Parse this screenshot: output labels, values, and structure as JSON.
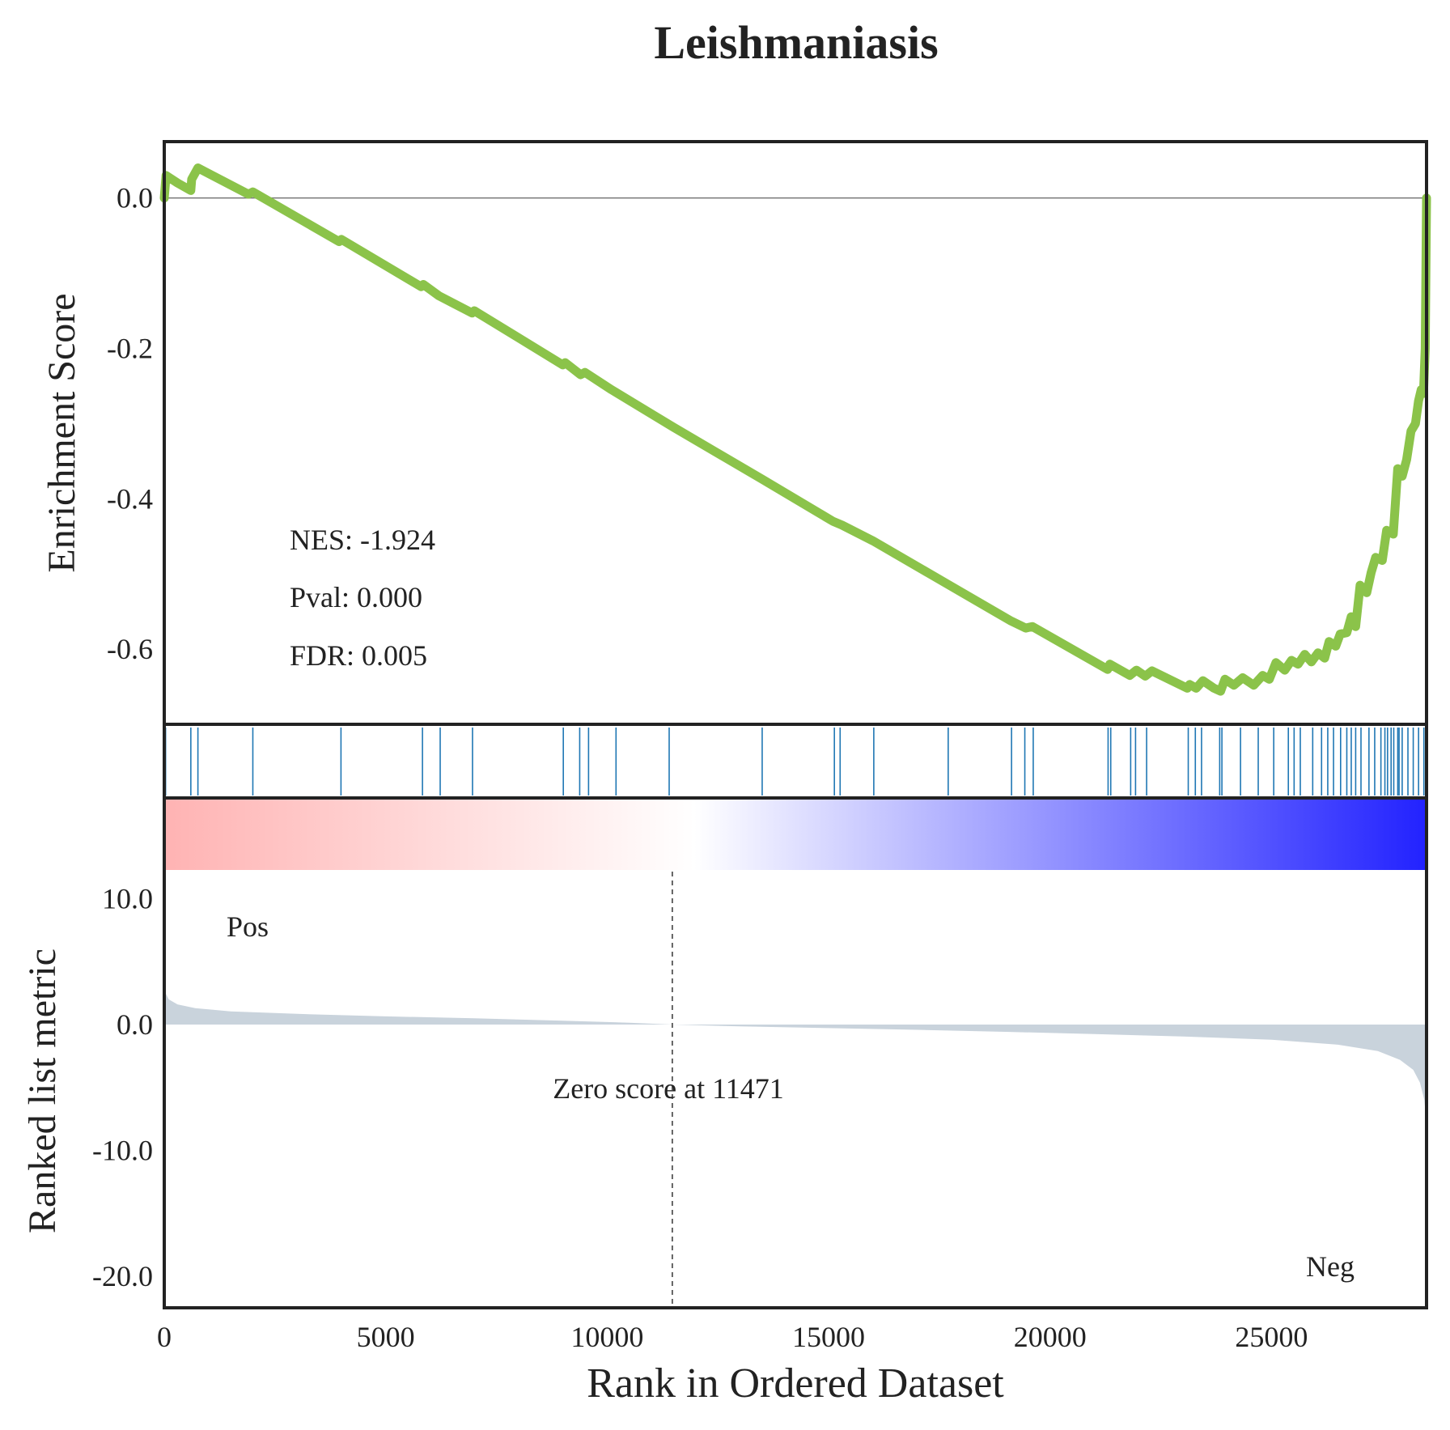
{
  "colors": {
    "es_line": "#8bc34a",
    "hit_line": "#1f77b4",
    "metric_fill": "#c9d3dc",
    "pos_color": "#ff0000",
    "neg_color": "#0000ff",
    "frame": "#222222"
  },
  "chart_data": {
    "type": "line",
    "title": "Leishmaniasis",
    "xlabel": "Rank in Ordered Dataset",
    "xlim": [
      0,
      28500
    ],
    "x_ticks": [
      {
        "value": 0,
        "label": "0"
      },
      {
        "value": 5000,
        "label": "5000"
      },
      {
        "value": 10000,
        "label": "10000"
      },
      {
        "value": 15000,
        "label": "15000"
      },
      {
        "value": 20000,
        "label": "20000"
      },
      {
        "value": 25000,
        "label": "25000"
      }
    ],
    "enrichment": {
      "ylabel": "Enrichment Score",
      "ylim": [
        -0.7,
        0.075
      ],
      "y_ticks": [
        {
          "value": 0.0,
          "label": "0.0"
        },
        {
          "value": -0.2,
          "label": "-0.2"
        },
        {
          "value": -0.4,
          "label": "-0.4"
        },
        {
          "value": -0.6,
          "label": "-0.6"
        }
      ],
      "stats": [
        "NES: -1.924",
        "Pval: 0.000",
        "FDR: 0.005"
      ],
      "points": [
        [
          0,
          0.0
        ],
        [
          40,
          0.03
        ],
        [
          300,
          0.02
        ],
        [
          600,
          0.01
        ],
        [
          620,
          0.025
        ],
        [
          760,
          0.04
        ],
        [
          1900,
          0.005
        ],
        [
          2000,
          0.008
        ],
        [
          3950,
          -0.058
        ],
        [
          4000,
          -0.055
        ],
        [
          5800,
          -0.118
        ],
        [
          5850,
          -0.115
        ],
        [
          6200,
          -0.13
        ],
        [
          6950,
          -0.153
        ],
        [
          7000,
          -0.15
        ],
        [
          9000,
          -0.222
        ],
        [
          9050,
          -0.219
        ],
        [
          9400,
          -0.235
        ],
        [
          9500,
          -0.232
        ],
        [
          10100,
          -0.255
        ],
        [
          11500,
          -0.305
        ],
        [
          13500,
          -0.374
        ],
        [
          15100,
          -0.43
        ],
        [
          15300,
          -0.435
        ],
        [
          16000,
          -0.456
        ],
        [
          17700,
          -0.514
        ],
        [
          19100,
          -0.562
        ],
        [
          19450,
          -0.572
        ],
        [
          19600,
          -0.57
        ],
        [
          21300,
          -0.627
        ],
        [
          21350,
          -0.62
        ],
        [
          21800,
          -0.635
        ],
        [
          21950,
          -0.628
        ],
        [
          22150,
          -0.636
        ],
        [
          22300,
          -0.629
        ],
        [
          23100,
          -0.652
        ],
        [
          23150,
          -0.647
        ],
        [
          23300,
          -0.652
        ],
        [
          23450,
          -0.642
        ],
        [
          23700,
          -0.652
        ],
        [
          23850,
          -0.656
        ],
        [
          23950,
          -0.64
        ],
        [
          24150,
          -0.648
        ],
        [
          24350,
          -0.638
        ],
        [
          24600,
          -0.648
        ],
        [
          24800,
          -0.635
        ],
        [
          24950,
          -0.64
        ],
        [
          25100,
          -0.618
        ],
        [
          25300,
          -0.628
        ],
        [
          25450,
          -0.615
        ],
        [
          25600,
          -0.62
        ],
        [
          25750,
          -0.607
        ],
        [
          25900,
          -0.617
        ],
        [
          26050,
          -0.605
        ],
        [
          26200,
          -0.612
        ],
        [
          26300,
          -0.59
        ],
        [
          26450,
          -0.596
        ],
        [
          26550,
          -0.58
        ],
        [
          26700,
          -0.578
        ],
        [
          26800,
          -0.557
        ],
        [
          26900,
          -0.57
        ],
        [
          27000,
          -0.515
        ],
        [
          27150,
          -0.525
        ],
        [
          27250,
          -0.498
        ],
        [
          27350,
          -0.478
        ],
        [
          27500,
          -0.482
        ],
        [
          27600,
          -0.442
        ],
        [
          27750,
          -0.447
        ],
        [
          27850,
          -0.36
        ],
        [
          27950,
          -0.37
        ],
        [
          28050,
          -0.348
        ],
        [
          28150,
          -0.31
        ],
        [
          28250,
          -0.3
        ],
        [
          28320,
          -0.27
        ],
        [
          28380,
          -0.255
        ],
        [
          28430,
          -0.26
        ],
        [
          28470,
          -0.2
        ],
        [
          28500,
          0.0
        ]
      ]
    },
    "hits": [
      30,
      600,
      760,
      2000,
      3990,
      5830,
      6230,
      6960,
      9010,
      9380,
      9580,
      10200,
      11400,
      13500,
      15130,
      15260,
      16020,
      17700,
      19130,
      19430,
      19620,
      21310,
      21370,
      21820,
      21930,
      22180,
      23120,
      23280,
      23420,
      23830,
      23880,
      24300,
      24700,
      25050,
      25380,
      25510,
      25650,
      25930,
      26130,
      26270,
      26400,
      26560,
      26700,
      26800,
      26900,
      27020,
      27200,
      27330,
      27470,
      27560,
      27620,
      27700,
      27760,
      27850,
      27880,
      27950,
      28080,
      28200,
      28320,
      28440
    ],
    "heatmap": {
      "left_color": "#ffb3b3",
      "mid_color": "#ffffff",
      "right_color": "#2222ff"
    },
    "metric": {
      "ylabel": "Ranked list metric",
      "ylim": [
        -22.5,
        18
      ],
      "y_ticks": [
        {
          "value": 10.0,
          "label": "10.0"
        },
        {
          "value": 0.0,
          "label": "0.0"
        },
        {
          "value": -10.0,
          "label": "-10.0"
        },
        {
          "value": -20.0,
          "label": "-20.0"
        }
      ],
      "zero_cross": 11471,
      "zero_label": "Zero score at 11471",
      "pos_label": "Pos",
      "neg_label": "Neg",
      "points": [
        [
          0,
          4.0
        ],
        [
          30,
          2.5
        ],
        [
          100,
          2.0
        ],
        [
          300,
          1.6
        ],
        [
          700,
          1.3
        ],
        [
          1500,
          1.05
        ],
        [
          3000,
          0.85
        ],
        [
          5000,
          0.65
        ],
        [
          7000,
          0.5
        ],
        [
          9000,
          0.3
        ],
        [
          10500,
          0.15
        ],
        [
          11471,
          0.0
        ],
        [
          13000,
          -0.15
        ],
        [
          15000,
          -0.28
        ],
        [
          17000,
          -0.42
        ],
        [
          19000,
          -0.58
        ],
        [
          21000,
          -0.75
        ],
        [
          23000,
          -0.95
        ],
        [
          25000,
          -1.2
        ],
        [
          26500,
          -1.6
        ],
        [
          27400,
          -2.1
        ],
        [
          27900,
          -2.8
        ],
        [
          28200,
          -3.6
        ],
        [
          28350,
          -4.6
        ],
        [
          28450,
          -6.0
        ],
        [
          28500,
          -8.0
        ]
      ]
    }
  }
}
